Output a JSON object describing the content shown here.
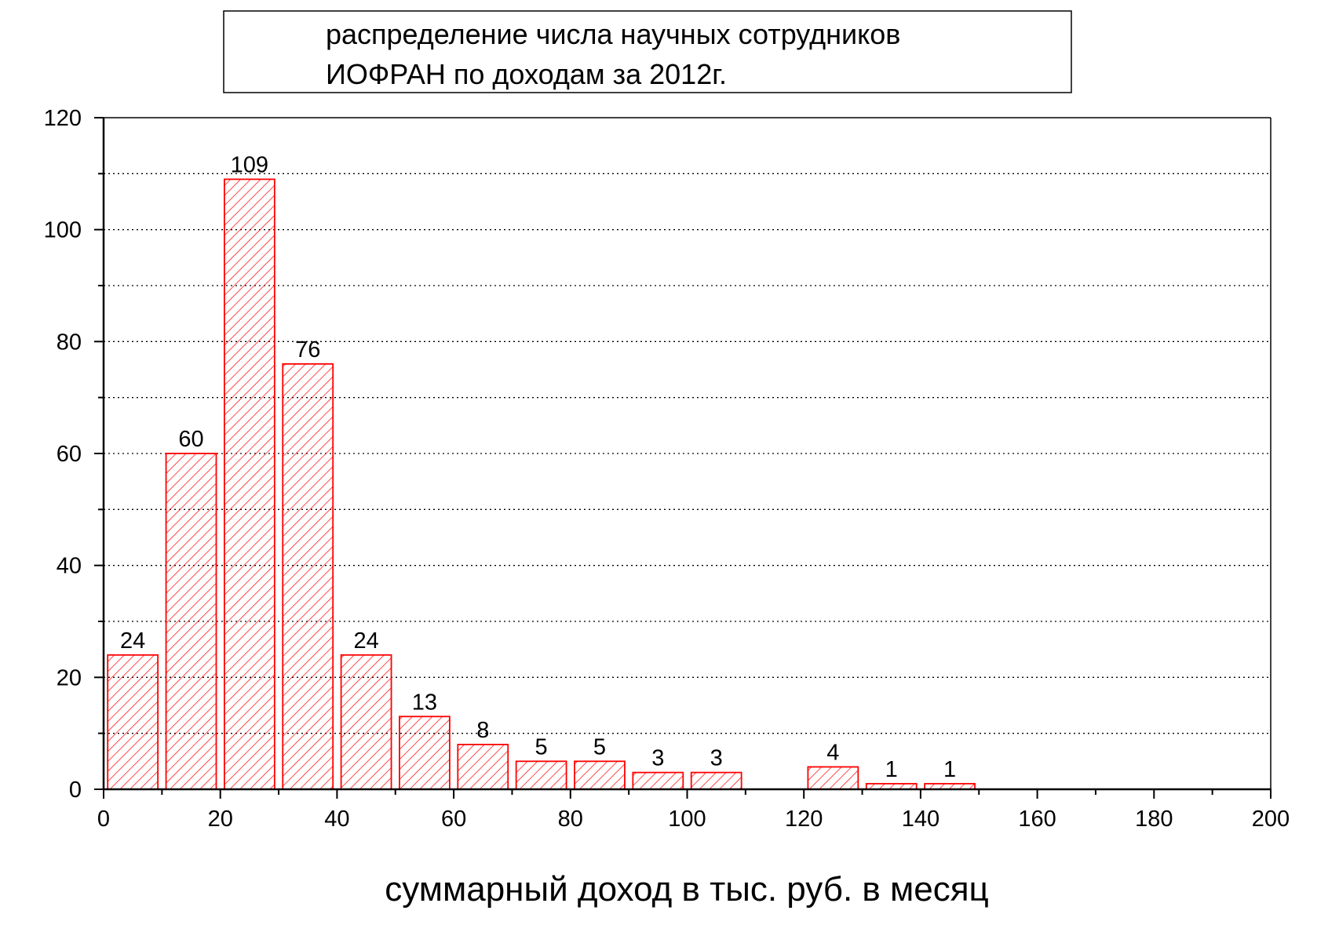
{
  "chart_data": {
    "type": "bar",
    "title_lines": [
      "распределение числа научных сотрудников",
      "ИОФРАН по доходам за 2012г."
    ],
    "xlabel": "суммарный доход в тыс. руб. в месяц",
    "ylabel": "",
    "xlim": [
      0,
      200
    ],
    "ylim": [
      0,
      120
    ],
    "x_major_ticks": [
      0,
      20,
      40,
      60,
      80,
      100,
      120,
      140,
      160,
      180,
      200
    ],
    "x_minor_ticks": [
      10,
      30,
      50,
      70,
      90,
      110,
      130,
      150,
      170,
      190
    ],
    "y_major_ticks": [
      0,
      20,
      40,
      60,
      80,
      100,
      120
    ],
    "y_minor_ticks": [
      10,
      30,
      50,
      70,
      90,
      110
    ],
    "grid": "horizontal dotted at every 10",
    "bar_color": "#ff0000",
    "bar_fill_pattern": "diagonal hatch",
    "bins": [
      {
        "x0": 0,
        "x1": 10,
        "value": 24,
        "label": "24"
      },
      {
        "x0": 10,
        "x1": 20,
        "value": 60,
        "label": "60"
      },
      {
        "x0": 20,
        "x1": 30,
        "value": 109,
        "label": "109"
      },
      {
        "x0": 30,
        "x1": 40,
        "value": 76,
        "label": "76"
      },
      {
        "x0": 40,
        "x1": 50,
        "value": 24,
        "label": "24"
      },
      {
        "x0": 50,
        "x1": 60,
        "value": 13,
        "label": "13"
      },
      {
        "x0": 60,
        "x1": 70,
        "value": 8,
        "label": "8"
      },
      {
        "x0": 70,
        "x1": 80,
        "value": 5,
        "label": "5"
      },
      {
        "x0": 80,
        "x1": 90,
        "value": 5,
        "label": "5"
      },
      {
        "x0": 90,
        "x1": 100,
        "value": 3,
        "label": "3"
      },
      {
        "x0": 100,
        "x1": 110,
        "value": 3,
        "label": "3"
      },
      {
        "x0": 120,
        "x1": 130,
        "value": 4,
        "label": "4"
      },
      {
        "x0": 130,
        "x1": 140,
        "value": 1,
        "label": "1"
      },
      {
        "x0": 140,
        "x1": 150,
        "value": 1,
        "label": "1"
      }
    ]
  }
}
